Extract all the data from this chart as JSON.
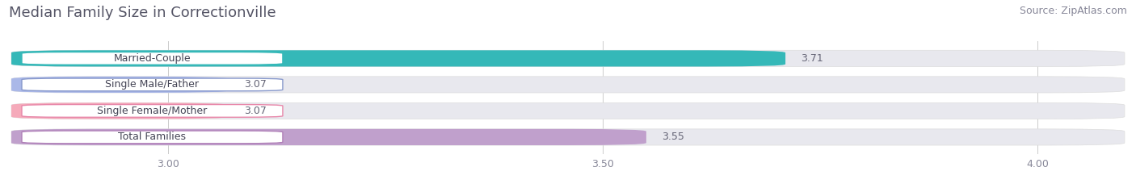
{
  "title": "Median Family Size in Correctionville",
  "source": "Source: ZipAtlas.com",
  "categories": [
    "Married-Couple",
    "Single Male/Father",
    "Single Female/Mother",
    "Total Families"
  ],
  "values": [
    3.71,
    3.07,
    3.07,
    3.55
  ],
  "bar_colors": [
    "#35b8b8",
    "#aab8e8",
    "#f5aaba",
    "#c0a0cc"
  ],
  "label_border_colors": [
    "#35b8b8",
    "#8899cc",
    "#e888aa",
    "#b080b8"
  ],
  "xmin": 2.82,
  "xmax": 4.1,
  "xticks": [
    3.0,
    3.5,
    4.0
  ],
  "bar_height": 0.62,
  "figsize": [
    14.06,
    2.33
  ],
  "dpi": 100,
  "background_color": "#ffffff",
  "bar_bg_color": "#e8e8ee",
  "title_fontsize": 13,
  "source_fontsize": 9,
  "label_fontsize": 9,
  "value_fontsize": 9,
  "tick_fontsize": 9,
  "title_color": "#555566",
  "source_color": "#888899",
  "value_color": "#666677",
  "tick_color": "#888899"
}
